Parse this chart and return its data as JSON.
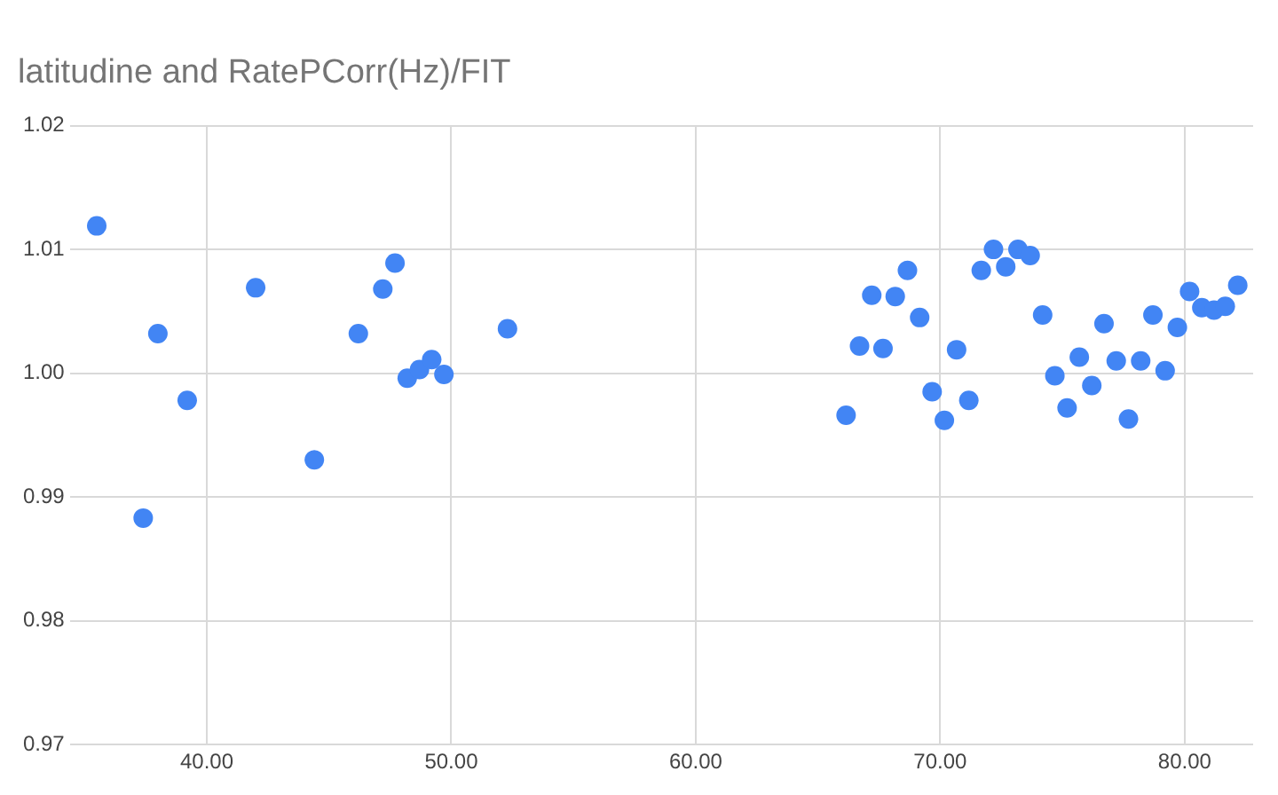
{
  "chart_data": {
    "type": "scatter",
    "title": "latitudine and RatePCorr(Hz)/FIT",
    "x": [
      35.5,
      37.4,
      38.0,
      39.2,
      42.0,
      44.4,
      46.2,
      47.2,
      47.7,
      48.2,
      48.7,
      49.2,
      49.7,
      52.3,
      66.15,
      66.7,
      67.2,
      67.66,
      68.16,
      68.66,
      69.16,
      69.67,
      70.17,
      70.67,
      71.17,
      71.68,
      72.18,
      72.68,
      73.18,
      73.68,
      74.19,
      74.69,
      75.19,
      75.69,
      76.2,
      76.7,
      77.2,
      77.7,
      78.2,
      78.7,
      79.2,
      79.7,
      80.2,
      80.7,
      81.2,
      81.66,
      82.17
    ],
    "series": [
      {
        "color": "#4285f4",
        "values": [
          1.0119,
          0.9883,
          1.0032,
          0.9978,
          1.0069,
          0.993,
          1.0032,
          1.0068,
          1.0089,
          0.9996,
          1.0003,
          1.0011,
          0.9999,
          1.0036,
          0.9966,
          1.0022,
          1.0063,
          1.002,
          1.0062,
          1.0083,
          1.0045,
          0.9985,
          0.9962,
          1.0019,
          0.9978,
          1.0083,
          1.01,
          1.0086,
          1.01,
          1.0095,
          1.0047,
          0.9998,
          0.9972,
          1.0013,
          0.999,
          1.004,
          1.001,
          0.9963,
          1.001,
          1.0047,
          1.0002,
          1.0037,
          1.0066,
          1.0053,
          1.0051,
          1.0054,
          1.0071
        ]
      }
    ],
    "xlim": [
      34.4,
      82.8
    ],
    "xticks": [
      {
        "value": 40,
        "label": "40.00"
      },
      {
        "value": 50,
        "label": "50.00"
      },
      {
        "value": 60,
        "label": "60.00"
      },
      {
        "value": 70,
        "label": "70.00"
      },
      {
        "value": 80,
        "label": "80.00"
      }
    ],
    "ylim": [
      0.97,
      1.02
    ],
    "yticks": [
      {
        "value": 0.97,
        "label": "0.97"
      },
      {
        "value": 0.98,
        "label": "0.98"
      },
      {
        "value": 0.99,
        "label": "0.99"
      },
      {
        "value": 1.0,
        "label": "1.00"
      },
      {
        "value": 1.01,
        "label": "1.01"
      },
      {
        "value": 1.02,
        "label": "1.02"
      }
    ],
    "grid": true,
    "marker": "circle",
    "legend": false
  }
}
